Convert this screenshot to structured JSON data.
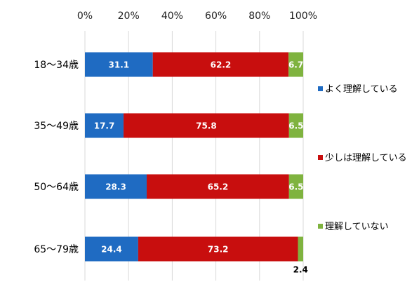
{
  "chart_data": {
    "type": "bar",
    "orientation": "horizontal",
    "stacked": "percent",
    "x_ticks": [
      "0%",
      "20%",
      "40%",
      "60%",
      "80%",
      "100%"
    ],
    "xlim": [
      0,
      100
    ],
    "categories": [
      "18～34歳",
      "35～49歳",
      "50～64歳",
      "65～79歳"
    ],
    "series": [
      {
        "name": "よく理解している",
        "color": "#1F6BC2",
        "values": [
          31.1,
          17.7,
          28.3,
          24.4
        ],
        "labels": [
          "31.1",
          "17.7",
          "28.3",
          "24.4"
        ]
      },
      {
        "name": "少しは理解している",
        "color": "#C80E0E",
        "values": [
          62.2,
          75.8,
          65.2,
          73.2
        ],
        "labels": [
          "62.2",
          "75.8",
          "65.2",
          "73.2"
        ]
      },
      {
        "name": "理解していない",
        "color": "#7FB33F",
        "values": [
          6.7,
          6.5,
          6.5,
          2.4
        ],
        "labels": [
          "6.7",
          "6.5",
          "6.5",
          "2.4"
        ]
      }
    ],
    "legend_position": "right",
    "grid": "vertical"
  }
}
